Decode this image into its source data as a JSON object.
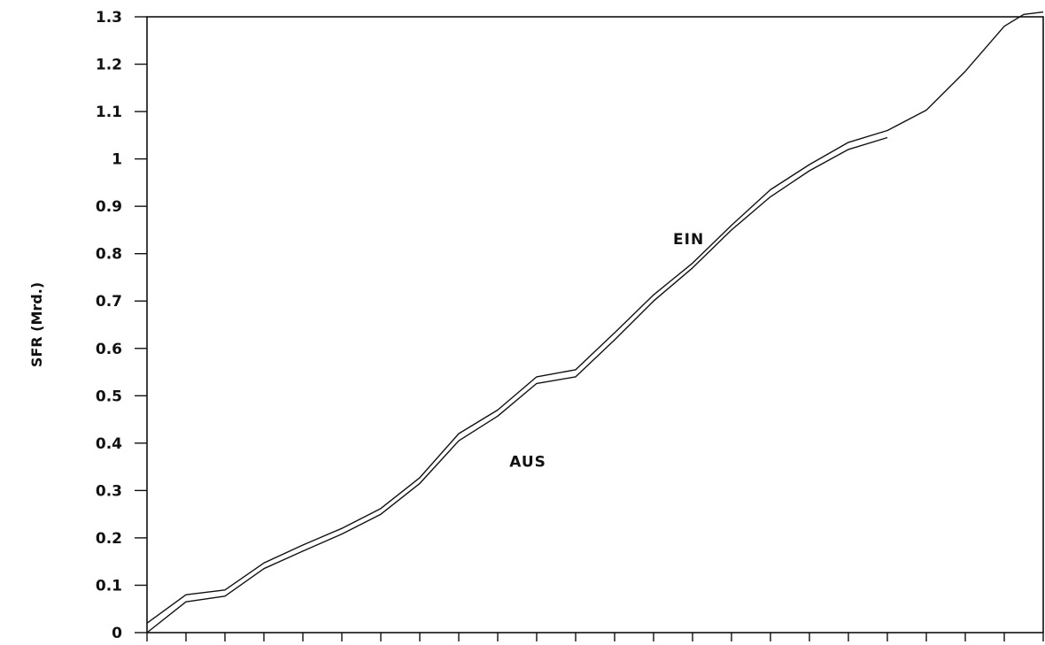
{
  "chart_data": {
    "type": "line",
    "title": "",
    "xlabel": "",
    "ylabel": "SFR (Mrd.)",
    "ylim": [
      0,
      1.3
    ],
    "xlim": [
      0,
      23
    ],
    "yticks": [
      "0",
      "0.1",
      "0.2",
      "0.3",
      "0.4",
      "0.5",
      "0.6",
      "0.7",
      "0.8",
      "0.9",
      "1",
      "1.1",
      "1.2",
      "1.3"
    ],
    "xtick_count": 24,
    "grid": false,
    "legend": "none",
    "series": [
      {
        "name": "EIN",
        "x": [
          0,
          1,
          2,
          3,
          4,
          5,
          6,
          7,
          8,
          9,
          10,
          11,
          12,
          13,
          14,
          15,
          16,
          17,
          18,
          19,
          20,
          21,
          22,
          22.5,
          23
        ],
        "values": [
          0.02,
          0.08,
          0.09,
          0.147,
          0.185,
          0.22,
          0.262,
          0.327,
          0.42,
          0.47,
          0.54,
          0.555,
          0.633,
          0.713,
          0.78,
          0.86,
          0.935,
          0.988,
          1.035,
          1.06,
          1.103,
          1.185,
          1.28,
          1.305,
          1.31
        ]
      },
      {
        "name": "AUS",
        "x": [
          0,
          1,
          2,
          3,
          4,
          5,
          6,
          7,
          8,
          9,
          10,
          11,
          12,
          13,
          14,
          15,
          16,
          17,
          18,
          19
        ],
        "values": [
          0,
          0.065,
          0.077,
          0.135,
          0.172,
          0.208,
          0.25,
          0.315,
          0.405,
          0.457,
          0.526,
          0.54,
          0.618,
          0.7,
          0.77,
          0.85,
          0.92,
          0.975,
          1.02,
          1.045
        ]
      }
    ],
    "annotations": [
      {
        "text": "EIN",
        "x": 13.5,
        "y": 0.82
      },
      {
        "text": "AUS",
        "x": 9.3,
        "y": 0.35
      }
    ]
  }
}
